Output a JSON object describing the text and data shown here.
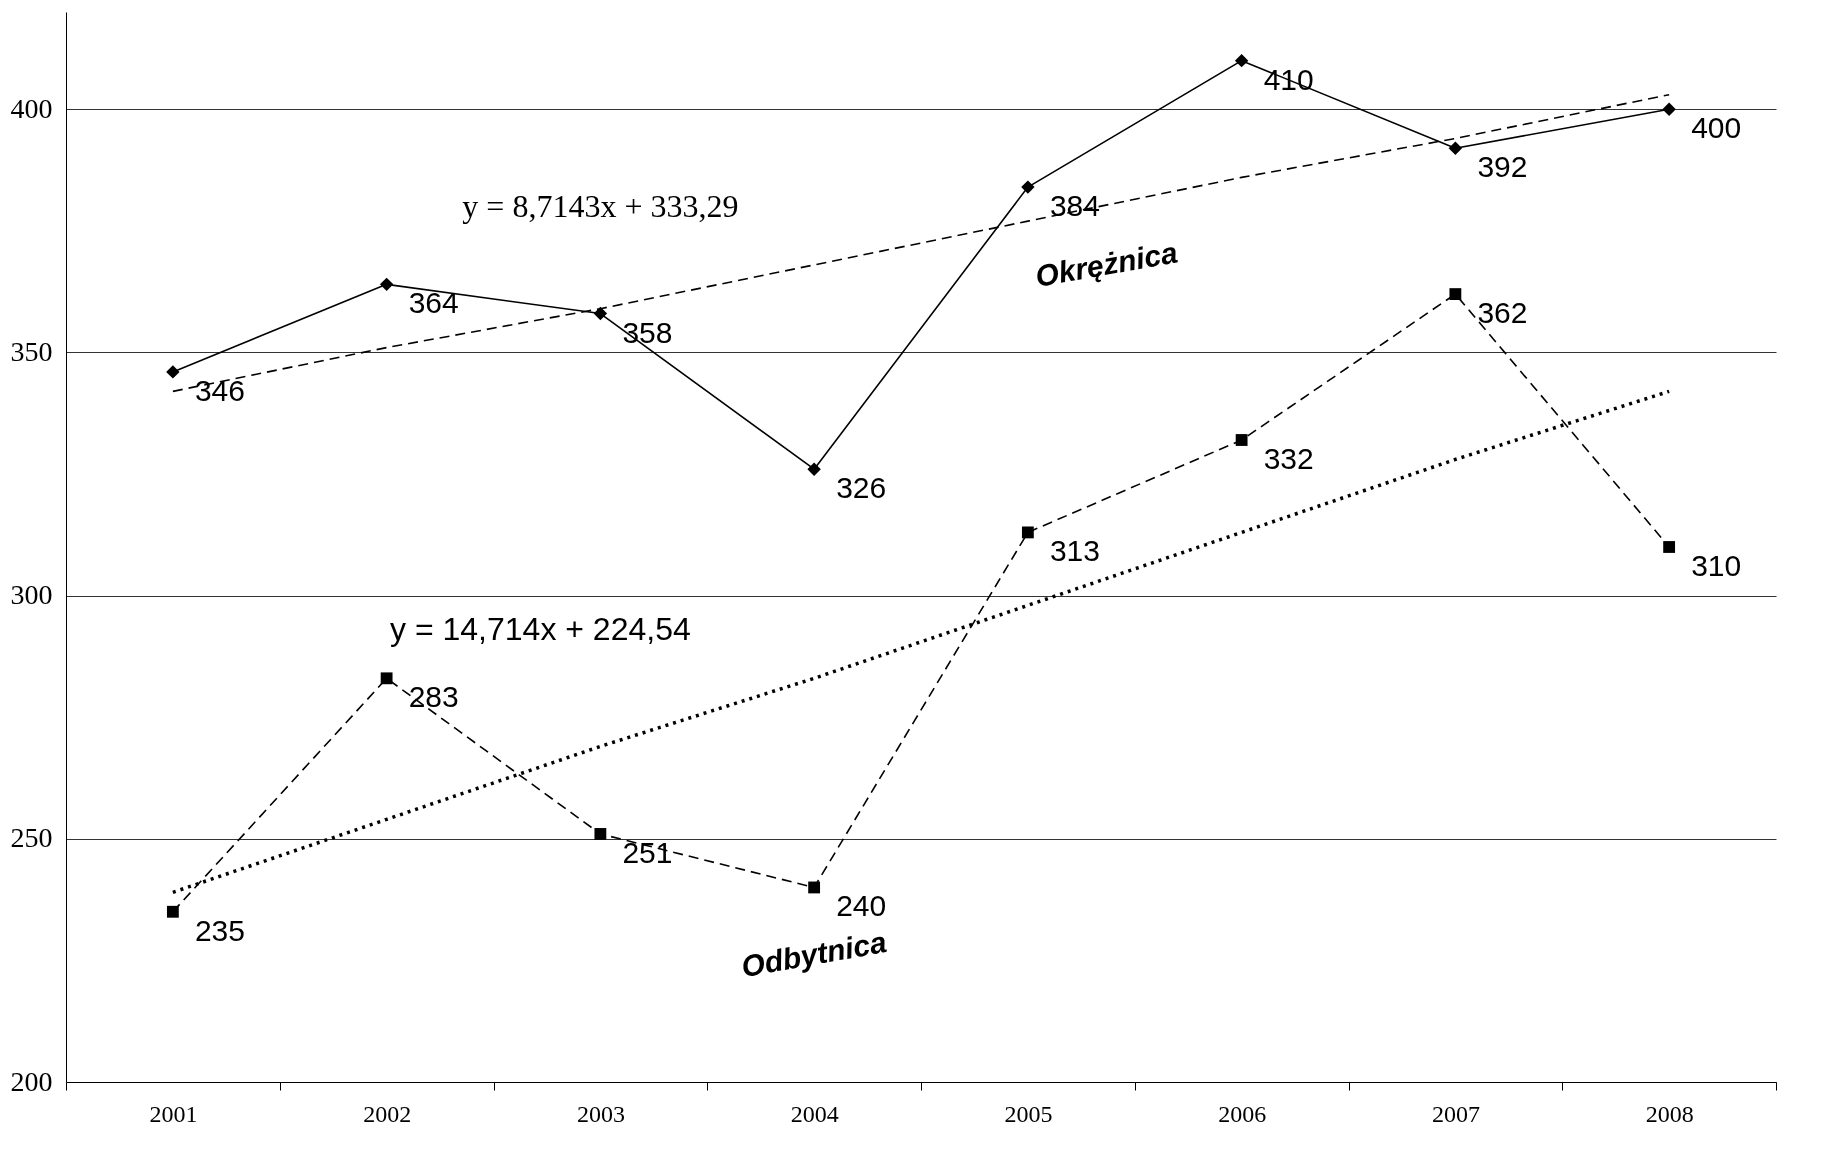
{
  "chart_data": {
    "type": "line",
    "categories": [
      "2001",
      "2002",
      "2003",
      "2004",
      "2005",
      "2006",
      "2007",
      "2008"
    ],
    "ylim": [
      200,
      420
    ],
    "yticks": [
      200,
      250,
      300,
      350,
      400
    ],
    "grid": "y",
    "series": [
      {
        "name": "Okrężnica",
        "color": "#000000",
        "marker": "diamond",
        "line_style": "solid",
        "values": [
          346,
          364,
          358,
          326,
          384,
          410,
          392,
          400
        ],
        "value_labels": [
          "346",
          "364",
          "358",
          "326",
          "384",
          "410",
          "392",
          "400"
        ]
      },
      {
        "name": "Odbytnica",
        "color": "#000000",
        "marker": "square",
        "line_style": "dashed",
        "values": [
          235,
          283,
          251,
          240,
          313,
          332,
          362,
          310
        ],
        "value_labels": [
          "235",
          "283",
          "251",
          "240",
          "313",
          "332",
          "362",
          "310"
        ]
      },
      {
        "type": "line",
        "color": "#000000",
        "marker": "none",
        "line_style": "dashed",
        "values": [
          342,
          351,
          359,
          368,
          377,
          386,
          394,
          403
        ]
      },
      {
        "type": "line",
        "color": "#000000",
        "marker": "none",
        "line_style": "dotted",
        "values": [
          239,
          254,
          269,
          283,
          298,
          313,
          328,
          342
        ]
      }
    ],
    "annotations": [
      "y = 8,7143x + 333,29",
      "y = 14,714x + 224,54"
    ]
  }
}
